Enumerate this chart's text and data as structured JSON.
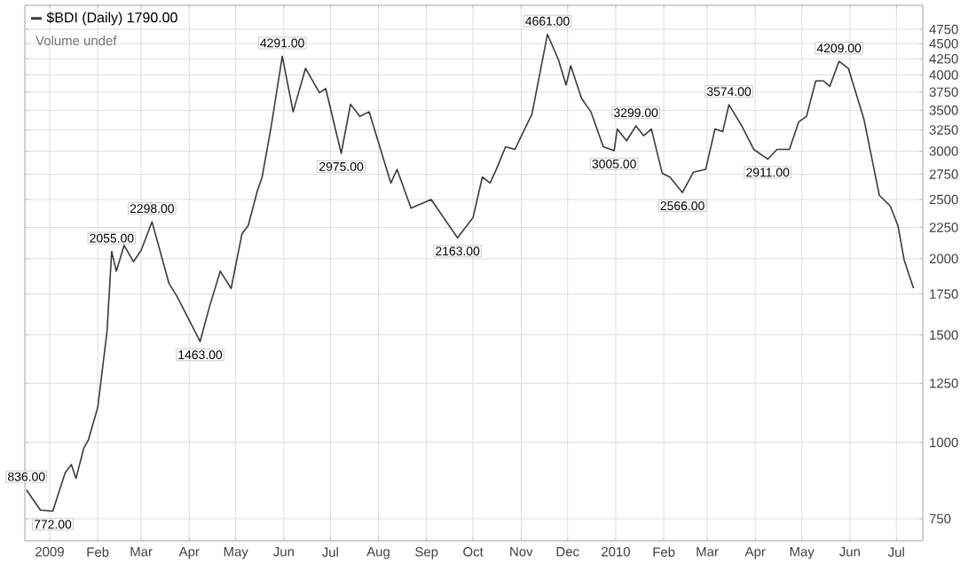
{
  "chart_data": {
    "type": "line",
    "x": [
      "2008-12-17",
      "2008-12-26",
      "2009-01-03",
      "2009-01-11",
      "2009-01-15",
      "2009-01-18",
      "2009-01-23",
      "2009-01-26",
      "2009-02-01",
      "2009-02-07",
      "2009-02-10",
      "2009-02-13",
      "2009-02-18",
      "2009-02-24",
      "2009-03-01",
      "2009-03-08",
      "2009-03-19",
      "2009-03-24",
      "2009-04-08",
      "2009-04-14",
      "2009-04-21",
      "2009-04-28",
      "2009-05-05",
      "2009-05-09",
      "2009-05-15",
      "2009-05-18",
      "2009-05-24",
      "2009-05-31",
      "2009-06-07",
      "2009-06-15",
      "2009-06-24",
      "2009-06-28",
      "2009-07-08",
      "2009-07-14",
      "2009-07-20",
      "2009-07-26",
      "2009-08-09",
      "2009-08-13",
      "2009-08-22",
      "2009-09-04",
      "2009-09-21",
      "2009-10-01",
      "2009-10-07",
      "2009-10-12",
      "2009-10-16",
      "2009-10-22",
      "2009-10-28",
      "2009-11-08",
      "2009-11-18",
      "2009-11-25",
      "2009-11-30",
      "2009-12-03",
      "2009-12-10",
      "2009-12-16",
      "2009-12-24",
      "2009-12-31",
      "2010-01-02",
      "2010-01-08",
      "2010-01-14",
      "2010-01-19",
      "2010-01-24",
      "2010-01-31",
      "2010-02-05",
      "2010-02-13",
      "2010-02-20",
      "2010-02-28",
      "2010-03-06",
      "2010-03-11",
      "2010-03-15",
      "2010-03-23",
      "2010-03-31",
      "2010-04-09",
      "2010-04-15",
      "2010-04-23",
      "2010-04-29",
      "2010-05-04",
      "2010-05-10",
      "2010-05-15",
      "2010-05-19",
      "2010-05-25",
      "2010-05-31",
      "2010-06-10",
      "2010-06-16",
      "2010-06-20",
      "2010-06-27",
      "2010-07-02",
      "2010-07-06",
      "2010-07-12"
    ],
    "series": [
      {
        "name": "$BDI (Daily) 1790.00",
        "color": "#3a3a3a",
        "values": [
          836,
          775,
          772,
          892,
          920,
          873,
          979,
          1010,
          1141,
          1521,
          2055,
          1908,
          2103,
          1977,
          2064,
          2298,
          1820,
          1737,
          1463,
          1666,
          1908,
          1787,
          2196,
          2265,
          2587,
          2720,
          3310,
          4291,
          3480,
          4100,
          3740,
          3800,
          2975,
          3580,
          3420,
          3480,
          2660,
          2800,
          2420,
          2500,
          2163,
          2335,
          2720,
          2660,
          2800,
          3050,
          3020,
          3450,
          4661,
          4240,
          3850,
          4140,
          3660,
          3480,
          3050,
          3005,
          3260,
          3120,
          3299,
          3180,
          3260,
          2760,
          2720,
          2566,
          2770,
          2800,
          3260,
          3230,
          3574,
          3310,
          3020,
          2911,
          3020,
          3020,
          3350,
          3420,
          3910,
          3910,
          3830,
          4209,
          4100,
          3390,
          2850,
          2540,
          2440,
          2265,
          1990,
          1790
        ]
      }
    ],
    "annotations": [
      "Volume undef",
      {
        "text": "836.00",
        "x": "2008-12-17",
        "y": 836
      },
      {
        "text": "772.00",
        "x": "2009-01-03",
        "y": 772
      },
      {
        "text": "2055.00",
        "x": "2009-02-10",
        "y": 2055
      },
      {
        "text": "2298.00",
        "x": "2009-03-08",
        "y": 2298
      },
      {
        "text": "1463.00",
        "x": "2009-04-08",
        "y": 1463
      },
      {
        "text": "4291.00",
        "x": "2009-05-31",
        "y": 4291
      },
      {
        "text": "2975.00",
        "x": "2009-07-08",
        "y": 2975
      },
      {
        "text": "2163.00",
        "x": "2009-09-21",
        "y": 2163
      },
      {
        "text": "4661.00",
        "x": "2009-11-18",
        "y": 4661
      },
      {
        "text": "3005.00",
        "x": "2009-12-31",
        "y": 3005
      },
      {
        "text": "3299.00",
        "x": "2010-01-14",
        "y": 3299
      },
      {
        "text": "2566.00",
        "x": "2010-02-13",
        "y": 2566
      },
      {
        "text": "3574.00",
        "x": "2010-03-15",
        "y": 3574
      },
      {
        "text": "2911.00",
        "x": "2010-04-09",
        "y": 2911
      },
      {
        "text": "4209.00",
        "x": "2010-05-25",
        "y": 4209
      }
    ],
    "xlim": [
      "2008-12-16",
      "2010-07-18"
    ],
    "xticks": [
      {
        "value": "2009-01-01",
        "label": "2009"
      },
      {
        "value": "2009-02-01",
        "label": "Feb"
      },
      {
        "value": "2009-03-01",
        "label": "Mar"
      },
      {
        "value": "2009-04-01",
        "label": "Apr"
      },
      {
        "value": "2009-05-01",
        "label": "May"
      },
      {
        "value": "2009-06-01",
        "label": "Jun"
      },
      {
        "value": "2009-07-01",
        "label": "Jul"
      },
      {
        "value": "2009-08-01",
        "label": "Aug"
      },
      {
        "value": "2009-09-01",
        "label": "Sep"
      },
      {
        "value": "2009-10-01",
        "label": "Oct"
      },
      {
        "value": "2009-11-01",
        "label": "Nov"
      },
      {
        "value": "2009-12-01",
        "label": "Dec"
      },
      {
        "value": "2010-01-01",
        "label": "2010"
      },
      {
        "value": "2010-02-01",
        "label": "Feb"
      },
      {
        "value": "2010-03-01",
        "label": "Mar"
      },
      {
        "value": "2010-04-01",
        "label": "Apr"
      },
      {
        "value": "2010-05-01",
        "label": "May"
      },
      {
        "value": "2010-06-01",
        "label": "Jun"
      },
      {
        "value": "2010-07-01",
        "label": "Jul"
      }
    ],
    "ylim": [
      690,
      5200
    ],
    "yticks": [
      750,
      1000,
      1250,
      1500,
      1750,
      2000,
      2250,
      2500,
      2750,
      3000,
      3250,
      3500,
      3750,
      4000,
      4250,
      4500,
      4750
    ],
    "log": "y",
    "grid": true,
    "legend": "top left",
    "marker": "none",
    "line_style": "solid"
  }
}
